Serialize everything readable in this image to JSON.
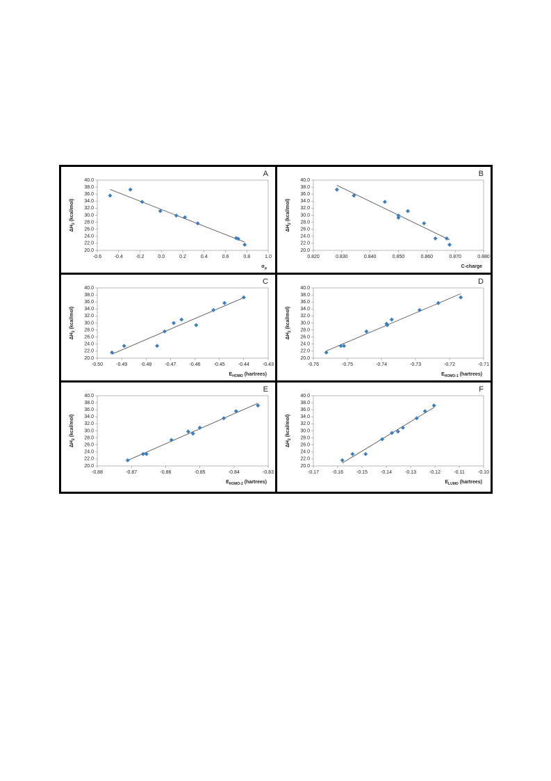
{
  "chart_data": [
    {
      "type": "scatter",
      "title": "A",
      "y_label": [
        "ΔH",
        "2",
        " (kcal/mol)"
      ],
      "x_label": [
        "σ",
        "p"
      ],
      "x": [
        -0.48,
        -0.29,
        -0.18,
        -0.01,
        0.14,
        0.22,
        0.34,
        0.7,
        0.72,
        0.78
      ],
      "y": [
        35.6,
        37.3,
        33.8,
        31.2,
        29.9,
        29.4,
        27.7,
        23.5,
        23.3,
        21.6
      ],
      "xlim": [
        -0.6,
        1.0
      ],
      "xticks": [
        -0.6,
        -0.4,
        -0.2,
        {
          "value": 0,
          "label": "0.0"
        },
        0.2,
        0.4,
        0.6,
        0.8,
        {
          "value": 1,
          "label": "1.0"
        }
      ],
      "ylim": [
        20,
        40
      ],
      "yticks": [
        {
          "value": 20,
          "label": "20.0"
        },
        {
          "value": 22,
          "label": "22.0"
        },
        {
          "value": 24,
          "label": "24.0"
        },
        {
          "value": 26,
          "label": "26.0"
        },
        {
          "value": 28,
          "label": "28.0"
        },
        {
          "value": 30,
          "label": "30.0"
        },
        {
          "value": 32,
          "label": "32.0"
        },
        {
          "value": 34,
          "label": "34.0"
        },
        {
          "value": 36,
          "label": "36.0"
        },
        {
          "value": 38,
          "label": "38.0"
        },
        {
          "value": 40,
          "label": "40.0"
        }
      ],
      "color": "#3a7fc1",
      "marker": "diamond",
      "trendline": "linear"
    },
    {
      "type": "scatter",
      "title": "B",
      "y_label": [
        "ΔH",
        "2",
        " (kcal/mol)"
      ],
      "x_label": [
        "C-charge"
      ],
      "x": [
        0.8283,
        0.8343,
        0.8452,
        0.85,
        0.85,
        0.8533,
        0.859,
        0.863,
        0.867,
        0.868
      ],
      "y": [
        37.3,
        35.6,
        33.8,
        29.9,
        29.3,
        31.2,
        27.7,
        23.4,
        23.4,
        21.6
      ],
      "xlim": [
        0.82,
        0.88
      ],
      "xticks": [
        {
          "value": 0.82,
          "label": "0.820"
        },
        {
          "value": 0.83,
          "label": "0.830"
        },
        {
          "value": 0.84,
          "label": "0.840"
        },
        {
          "value": 0.85,
          "label": "0.850"
        },
        {
          "value": 0.86,
          "label": "0.860"
        },
        {
          "value": 0.87,
          "label": "0.870"
        },
        {
          "value": 0.88,
          "label": "0.880"
        }
      ],
      "ylim": [
        20,
        40
      ],
      "yticks": [
        {
          "value": 20,
          "label": "20.0"
        },
        {
          "value": 22,
          "label": "22.0"
        },
        {
          "value": 24,
          "label": "24.0"
        },
        {
          "value": 26,
          "label": "26.0"
        },
        {
          "value": 28,
          "label": "28.0"
        },
        {
          "value": 30,
          "label": "30.0"
        },
        {
          "value": 32,
          "label": "32.0"
        },
        {
          "value": 34,
          "label": "34.0"
        },
        {
          "value": 36,
          "label": "36.0"
        },
        {
          "value": 38,
          "label": "38.0"
        },
        {
          "value": 40,
          "label": "40.0"
        }
      ],
      "color": "#3a7fc1",
      "marker": "diamond",
      "trendline": "linear"
    },
    {
      "type": "scatter",
      "title": "C",
      "y_label": [
        "ΔH",
        "2",
        " (kcal/mol)"
      ],
      "x_label": [
        "E",
        "HOMO",
        " (hartrees)"
      ],
      "x": [
        -0.494,
        -0.489,
        -0.4755,
        -0.4724,
        -0.4687,
        -0.4655,
        -0.4595,
        -0.4524,
        -0.4479,
        -0.44
      ],
      "y": [
        21.6,
        23.5,
        23.5,
        27.6,
        30.0,
        31.0,
        29.4,
        33.7,
        35.7,
        37.3
      ],
      "xlim": [
        -0.5,
        -0.43
      ],
      "xticks": [
        {
          "value": -0.5,
          "label": "-0.50"
        },
        -0.49,
        -0.48,
        -0.47,
        -0.46,
        -0.45,
        -0.44,
        -0.43
      ],
      "ylim": [
        20,
        40
      ],
      "yticks": [
        {
          "value": 20,
          "label": "20.0"
        },
        {
          "value": 22,
          "label": "22.0"
        },
        {
          "value": 24,
          "label": "24.0"
        },
        {
          "value": 26,
          "label": "26.0"
        },
        {
          "value": 28,
          "label": "28.0"
        },
        {
          "value": 30,
          "label": "30.0"
        },
        {
          "value": 32,
          "label": "32.0"
        },
        {
          "value": 34,
          "label": "34.0"
        },
        {
          "value": 36,
          "label": "36.0"
        },
        {
          "value": 38,
          "label": "38.0"
        },
        {
          "value": 40,
          "label": "40.0"
        }
      ],
      "color": "#3a7fc1",
      "marker": "diamond",
      "trendline": "linear"
    },
    {
      "type": "scatter",
      "title": "D",
      "y_label": [
        "ΔH",
        "2",
        " (kcal/mol)"
      ],
      "x_label": [
        "E",
        "HOMO-1",
        " (hartrees)"
      ],
      "x": [
        -0.7562,
        -0.7519,
        -0.751,
        -0.7444,
        -0.7385,
        -0.7383,
        -0.737,
        -0.7288,
        -0.7233,
        -0.7167
      ],
      "y": [
        21.6,
        23.5,
        23.5,
        27.6,
        29.8,
        29.4,
        31.0,
        33.7,
        35.7,
        37.3
      ],
      "xlim": [
        -0.76,
        -0.71
      ],
      "xticks": [
        -0.76,
        -0.75,
        -0.74,
        -0.73,
        -0.72,
        -0.71
      ],
      "ylim": [
        20,
        40
      ],
      "yticks": [
        {
          "value": 20,
          "label": "20.0"
        },
        {
          "value": 22,
          "label": "22.0"
        },
        {
          "value": 24,
          "label": "24.0"
        },
        {
          "value": 26,
          "label": "26.0"
        },
        {
          "value": 28,
          "label": "28.0"
        },
        {
          "value": 30,
          "label": "30.0"
        },
        {
          "value": 32,
          "label": "32.0"
        },
        {
          "value": 34,
          "label": "34.0"
        },
        {
          "value": 36,
          "label": "36.0"
        },
        {
          "value": 38,
          "label": "38.0"
        },
        {
          "value": 40,
          "label": "40.0"
        }
      ],
      "color": "#3a7fc1",
      "marker": "diamond",
      "trendline": "linear"
    },
    {
      "type": "scatter",
      "title": "E",
      "y_label": [
        "ΔH",
        "2",
        " (kcal/mol)"
      ],
      "x_label": [
        "E",
        "HOMO-2",
        " (hartrees)"
      ],
      "x": [
        -0.8711,
        -0.8666,
        -0.8656,
        -0.8583,
        -0.8534,
        -0.852,
        -0.85,
        -0.843,
        -0.8394,
        -0.833
      ],
      "y": [
        21.6,
        23.4,
        23.4,
        27.4,
        29.8,
        29.2,
        30.9,
        33.6,
        35.6,
        37.2
      ],
      "xlim": [
        -0.88,
        -0.83
      ],
      "xticks": [
        -0.88,
        -0.87,
        -0.86,
        -0.85,
        -0.84,
        -0.83
      ],
      "ylim": [
        20,
        40
      ],
      "yticks": [
        {
          "value": 20,
          "label": "20.0"
        },
        {
          "value": 22,
          "label": "22.0"
        },
        {
          "value": 24,
          "label": "24.0"
        },
        {
          "value": 26,
          "label": "26.0"
        },
        {
          "value": 28,
          "label": "28.0"
        },
        {
          "value": 30,
          "label": "30.0"
        },
        {
          "value": 32,
          "label": "32.0"
        },
        {
          "value": 34,
          "label": "34.0"
        },
        {
          "value": 36,
          "label": "36.0"
        },
        {
          "value": 38,
          "label": "38.0"
        },
        {
          "value": 40,
          "label": "40.0"
        }
      ],
      "color": "#3a7fc1",
      "marker": "diamond",
      "trendline": "linear"
    },
    {
      "type": "scatter",
      "title": "F",
      "y_label": [
        "ΔH",
        "2",
        " (kcal/mol)"
      ],
      "x_label": [
        "E",
        "LUMO",
        " (hartrees)"
      ],
      "x": [
        -0.1581,
        -0.1539,
        -0.1485,
        -0.1417,
        -0.1377,
        -0.1352,
        -0.1332,
        -0.1275,
        -0.1241,
        -0.1204
      ],
      "y": [
        21.6,
        23.4,
        23.4,
        27.6,
        29.4,
        29.8,
        30.9,
        33.6,
        35.6,
        37.2
      ],
      "xlim": [
        -0.17,
        -0.1
      ],
      "xticks": [
        -0.17,
        -0.16,
        -0.15,
        -0.14,
        -0.13,
        -0.12,
        -0.11,
        {
          "value": -0.1,
          "label": "-0.10"
        }
      ],
      "ylim": [
        20,
        40
      ],
      "yticks": [
        {
          "value": 20,
          "label": "20.0"
        },
        {
          "value": 22,
          "label": "22.0"
        },
        {
          "value": 24,
          "label": "24.0"
        },
        {
          "value": 26,
          "label": "26.0"
        },
        {
          "value": 28,
          "label": "28.0"
        },
        {
          "value": 30,
          "label": "30.0"
        },
        {
          "value": 32,
          "label": "32.0"
        },
        {
          "value": 34,
          "label": "34.0"
        },
        {
          "value": 36,
          "label": "36.0"
        },
        {
          "value": 38,
          "label": "38.0"
        },
        {
          "value": 40,
          "label": "40.0"
        }
      ],
      "color": "#3a7fc1",
      "marker": "diamond",
      "trendline": "linear"
    }
  ]
}
